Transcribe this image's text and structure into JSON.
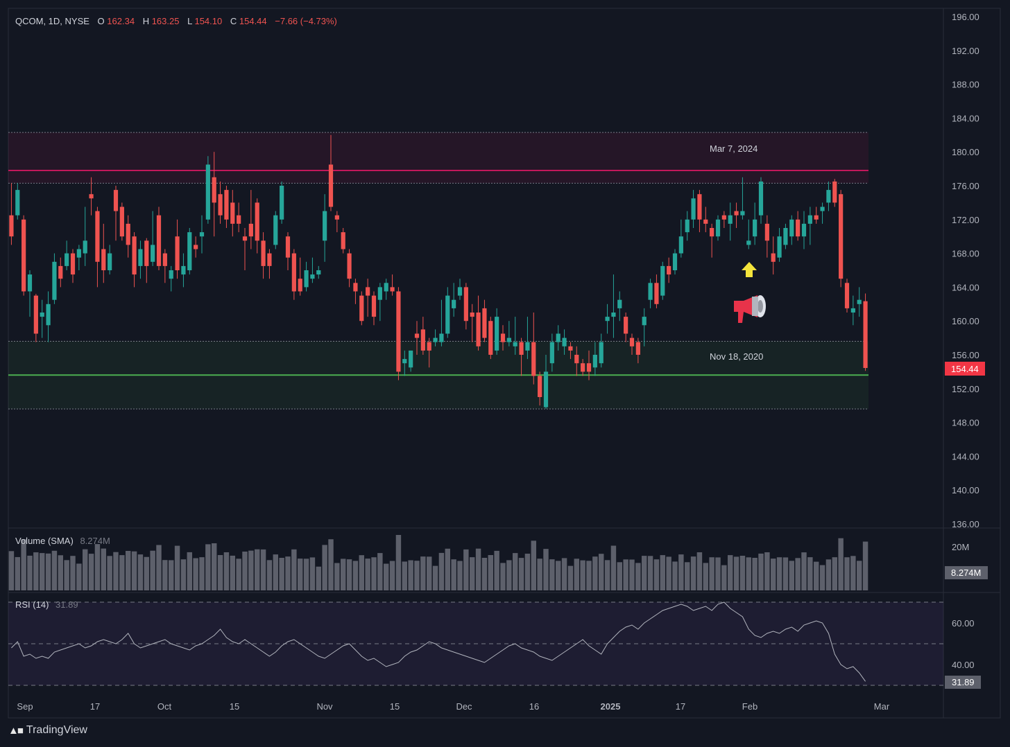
{
  "header": {
    "symbol": "QCOM, 1D, NYSE",
    "open_label": "O",
    "open": "162.34",
    "high_label": "H",
    "high": "163.25",
    "low_label": "L",
    "low": "154.10",
    "close_label": "C",
    "close": "154.44",
    "change": "−7.66 (−4.73%)"
  },
  "brand": {
    "name": "TradingView"
  },
  "zones": {
    "resistance_label": "Mar 7, 2024",
    "support_label": "Nov 18, 2020"
  },
  "volume_panel": {
    "label": "Volume (SMA)",
    "value": "8.274M",
    "axis_label": "20M",
    "badge": "8.274M"
  },
  "rsi_panel": {
    "label": "RSI (14)",
    "value": "31.89",
    "ticks": [
      "60.00",
      "40.00"
    ],
    "badge": "31.89"
  },
  "price_badge": "154.44",
  "colors": {
    "up": "#26a69a",
    "down": "#ef5350",
    "background": "#131722",
    "resistance": "#c2185b",
    "support": "#4caf50",
    "rsi_line": "#b2b5be"
  },
  "icons": [
    "up-arrow-icon",
    "megaphone-icon",
    "tradingview-logo-icon"
  ],
  "chart_data": [
    {
      "type": "candlestick",
      "title": "QCOM, 1D, NYSE",
      "price_axis_ticks": [
        "196.00",
        "192.00",
        "188.00",
        "184.00",
        "180.00",
        "176.00",
        "172.00",
        "168.00",
        "164.00",
        "160.00",
        "156.00",
        "152.00",
        "148.00",
        "144.00",
        "140.00",
        "136.00"
      ],
      "ylim": [
        136,
        196
      ],
      "time_axis_ticks": [
        "Sep",
        "17",
        "Oct",
        "15",
        "Nov",
        "15",
        "Dec",
        "16",
        "2025",
        "17",
        "Feb",
        "Mar"
      ],
      "levels": [
        {
          "label": "Mar 7, 2024",
          "price": 177.8,
          "zone": [
            176.3,
            182.3
          ]
        },
        {
          "label": "Nov 18, 2020",
          "price": 153.6,
          "zone": [
            149.6,
            157.6
          ]
        }
      ],
      "last_price": 154.44,
      "bars": [
        {
          "o": 172.5,
          "h": 176.3,
          "l": 169.0,
          "c": 170.0
        },
        {
          "o": 172.5,
          "h": 176.3,
          "l": 172.0,
          "c": 175.5
        },
        {
          "o": 172.0,
          "h": 172.5,
          "l": 163.0,
          "c": 163.5
        },
        {
          "o": 163.5,
          "h": 166.0,
          "l": 160.5,
          "c": 165.5
        },
        {
          "o": 163.0,
          "h": 163.2,
          "l": 157.5,
          "c": 158.5
        },
        {
          "o": 160.5,
          "h": 162.5,
          "l": 158.0,
          "c": 161.0
        },
        {
          "o": 159.5,
          "h": 163.5,
          "l": 157.5,
          "c": 162.0
        },
        {
          "o": 162.5,
          "h": 168.0,
          "l": 162.0,
          "c": 167.0
        },
        {
          "o": 166.5,
          "h": 167.5,
          "l": 164.0,
          "c": 165.0
        },
        {
          "o": 166.5,
          "h": 169.5,
          "l": 166.0,
          "c": 168.0
        },
        {
          "o": 168.0,
          "h": 168.5,
          "l": 164.5,
          "c": 165.5
        },
        {
          "o": 167.5,
          "h": 169.0,
          "l": 166.0,
          "c": 168.5
        },
        {
          "o": 168.0,
          "h": 173.5,
          "l": 166.5,
          "c": 169.5
        },
        {
          "o": 175.0,
          "h": 177.0,
          "l": 172.5,
          "c": 174.5
        },
        {
          "o": 173.0,
          "h": 173.5,
          "l": 164.0,
          "c": 167.0
        },
        {
          "o": 168.5,
          "h": 171.5,
          "l": 164.5,
          "c": 166.0
        },
        {
          "o": 166.0,
          "h": 169.0,
          "l": 165.5,
          "c": 168.0
        },
        {
          "o": 175.5,
          "h": 176.0,
          "l": 169.5,
          "c": 173.0
        },
        {
          "o": 173.5,
          "h": 174.0,
          "l": 169.5,
          "c": 170.0
        },
        {
          "o": 171.5,
          "h": 172.5,
          "l": 167.5,
          "c": 169.0
        },
        {
          "o": 170.0,
          "h": 170.5,
          "l": 164.0,
          "c": 165.5
        },
        {
          "o": 166.5,
          "h": 169.5,
          "l": 165.0,
          "c": 168.5
        },
        {
          "o": 169.5,
          "h": 169.8,
          "l": 164.5,
          "c": 166.5
        },
        {
          "o": 167.0,
          "h": 173.0,
          "l": 166.5,
          "c": 169.0
        },
        {
          "o": 172.5,
          "h": 173.5,
          "l": 166.0,
          "c": 166.5
        },
        {
          "o": 168.0,
          "h": 168.5,
          "l": 164.5,
          "c": 166.5
        },
        {
          "o": 165.0,
          "h": 166.5,
          "l": 163.5,
          "c": 166.0
        },
        {
          "o": 170.0,
          "h": 172.0,
          "l": 165.0,
          "c": 166.0
        },
        {
          "o": 165.5,
          "h": 168.0,
          "l": 164.0,
          "c": 166.5
        },
        {
          "o": 166.0,
          "h": 171.0,
          "l": 165.5,
          "c": 170.5
        },
        {
          "o": 169.0,
          "h": 170.0,
          "l": 167.5,
          "c": 168.5
        },
        {
          "o": 170.0,
          "h": 172.5,
          "l": 168.0,
          "c": 170.5
        },
        {
          "o": 172.0,
          "h": 179.5,
          "l": 171.5,
          "c": 178.5
        },
        {
          "o": 177.0,
          "h": 180.0,
          "l": 170.0,
          "c": 174.0
        },
        {
          "o": 175.0,
          "h": 176.5,
          "l": 171.5,
          "c": 172.5
        },
        {
          "o": 175.5,
          "h": 176.0,
          "l": 171.0,
          "c": 172.0
        },
        {
          "o": 174.0,
          "h": 175.5,
          "l": 170.0,
          "c": 171.5
        },
        {
          "o": 172.5,
          "h": 174.0,
          "l": 170.5,
          "c": 171.5
        },
        {
          "o": 170.0,
          "h": 171.0,
          "l": 166.0,
          "c": 169.5
        },
        {
          "o": 171.5,
          "h": 175.5,
          "l": 168.5,
          "c": 170.0
        },
        {
          "o": 174.0,
          "h": 174.5,
          "l": 168.0,
          "c": 169.5
        },
        {
          "o": 169.5,
          "h": 170.5,
          "l": 165.0,
          "c": 166.5
        },
        {
          "o": 168.0,
          "h": 168.5,
          "l": 165.0,
          "c": 166.5
        },
        {
          "o": 169.0,
          "h": 173.0,
          "l": 168.5,
          "c": 172.5
        },
        {
          "o": 172.0,
          "h": 176.5,
          "l": 171.5,
          "c": 176.0
        },
        {
          "o": 170.0,
          "h": 170.5,
          "l": 166.0,
          "c": 167.5
        },
        {
          "o": 168.0,
          "h": 168.5,
          "l": 162.5,
          "c": 163.5
        },
        {
          "o": 165.0,
          "h": 167.5,
          "l": 163.0,
          "c": 163.5
        },
        {
          "o": 164.0,
          "h": 167.0,
          "l": 163.5,
          "c": 166.0
        },
        {
          "o": 165.0,
          "h": 167.5,
          "l": 164.5,
          "c": 165.5
        },
        {
          "o": 165.5,
          "h": 166.5,
          "l": 165.0,
          "c": 166.0
        },
        {
          "o": 169.5,
          "h": 175.0,
          "l": 167.0,
          "c": 173.0
        },
        {
          "o": 178.5,
          "h": 182.0,
          "l": 173.0,
          "c": 173.5
        },
        {
          "o": 172.5,
          "h": 173.0,
          "l": 170.5,
          "c": 172.0
        },
        {
          "o": 170.5,
          "h": 171.0,
          "l": 168.0,
          "c": 168.5
        },
        {
          "o": 168.0,
          "h": 168.5,
          "l": 164.0,
          "c": 165.0
        },
        {
          "o": 164.5,
          "h": 165.0,
          "l": 162.0,
          "c": 163.5
        },
        {
          "o": 163.0,
          "h": 163.5,
          "l": 159.5,
          "c": 160.0
        },
        {
          "o": 164.0,
          "h": 165.0,
          "l": 160.5,
          "c": 163.0
        },
        {
          "o": 163.0,
          "h": 163.5,
          "l": 159.5,
          "c": 160.5
        },
        {
          "o": 162.5,
          "h": 164.5,
          "l": 160.0,
          "c": 164.0
        },
        {
          "o": 163.5,
          "h": 165.0,
          "l": 162.5,
          "c": 164.5
        },
        {
          "o": 164.0,
          "h": 165.5,
          "l": 163.0,
          "c": 163.5
        },
        {
          "o": 163.5,
          "h": 164.0,
          "l": 153.0,
          "c": 154.0
        },
        {
          "o": 155.0,
          "h": 156.5,
          "l": 153.5,
          "c": 155.5
        },
        {
          "o": 154.5,
          "h": 156.5,
          "l": 154.0,
          "c": 156.5
        },
        {
          "o": 158.5,
          "h": 160.0,
          "l": 156.0,
          "c": 158.0
        },
        {
          "o": 159.0,
          "h": 160.5,
          "l": 156.0,
          "c": 156.5
        },
        {
          "o": 157.5,
          "h": 158.0,
          "l": 154.5,
          "c": 156.5
        },
        {
          "o": 157.5,
          "h": 159.0,
          "l": 157.0,
          "c": 158.0
        },
        {
          "o": 157.5,
          "h": 162.5,
          "l": 157.0,
          "c": 158.5
        },
        {
          "o": 158.5,
          "h": 164.0,
          "l": 158.0,
          "c": 163.0
        },
        {
          "o": 161.5,
          "h": 164.5,
          "l": 160.5,
          "c": 162.5
        },
        {
          "o": 163.0,
          "h": 165.0,
          "l": 162.5,
          "c": 164.0
        },
        {
          "o": 164.0,
          "h": 164.5,
          "l": 159.0,
          "c": 160.0
        },
        {
          "o": 161.0,
          "h": 162.0,
          "l": 157.5,
          "c": 160.5
        },
        {
          "o": 161.0,
          "h": 163.0,
          "l": 156.5,
          "c": 157.0
        },
        {
          "o": 161.5,
          "h": 162.5,
          "l": 157.5,
          "c": 158.0
        },
        {
          "o": 160.0,
          "h": 160.5,
          "l": 155.5,
          "c": 156.0
        },
        {
          "o": 156.5,
          "h": 161.5,
          "l": 156.0,
          "c": 160.5
        },
        {
          "o": 158.5,
          "h": 159.5,
          "l": 156.5,
          "c": 157.5
        },
        {
          "o": 157.5,
          "h": 160.0,
          "l": 157.0,
          "c": 158.0
        },
        {
          "o": 157.0,
          "h": 160.5,
          "l": 156.0,
          "c": 157.5
        },
        {
          "o": 157.5,
          "h": 158.0,
          "l": 153.5,
          "c": 156.0
        },
        {
          "o": 156.5,
          "h": 160.5,
          "l": 155.5,
          "c": 157.5
        },
        {
          "o": 157.5,
          "h": 161.0,
          "l": 152.5,
          "c": 153.5
        },
        {
          "o": 153.5,
          "h": 154.0,
          "l": 150.0,
          "c": 151.0
        },
        {
          "o": 149.8,
          "h": 156.0,
          "l": 149.6,
          "c": 154.0
        },
        {
          "o": 155.0,
          "h": 158.5,
          "l": 154.0,
          "c": 157.5
        },
        {
          "o": 157.5,
          "h": 159.5,
          "l": 156.5,
          "c": 158.5
        },
        {
          "o": 157.0,
          "h": 159.0,
          "l": 156.0,
          "c": 158.0
        },
        {
          "o": 157.0,
          "h": 157.5,
          "l": 155.5,
          "c": 156.5
        },
        {
          "o": 156.0,
          "h": 157.0,
          "l": 153.5,
          "c": 155.0
        },
        {
          "o": 155.0,
          "h": 155.5,
          "l": 153.5,
          "c": 154.0
        },
        {
          "o": 155.0,
          "h": 156.5,
          "l": 153.0,
          "c": 154.0
        },
        {
          "o": 154.5,
          "h": 157.5,
          "l": 153.5,
          "c": 156.0
        },
        {
          "o": 155.0,
          "h": 158.5,
          "l": 154.5,
          "c": 157.5
        },
        {
          "o": 160.0,
          "h": 162.0,
          "l": 158.5,
          "c": 160.5
        },
        {
          "o": 160.5,
          "h": 165.5,
          "l": 158.0,
          "c": 161.0
        },
        {
          "o": 161.5,
          "h": 163.5,
          "l": 160.0,
          "c": 162.5
        },
        {
          "o": 160.5,
          "h": 161.0,
          "l": 157.5,
          "c": 158.5
        },
        {
          "o": 158.0,
          "h": 158.5,
          "l": 156.0,
          "c": 157.0
        },
        {
          "o": 157.5,
          "h": 158.0,
          "l": 155.0,
          "c": 156.0
        },
        {
          "o": 159.5,
          "h": 161.5,
          "l": 157.0,
          "c": 160.5
        },
        {
          "o": 162.5,
          "h": 165.0,
          "l": 161.5,
          "c": 164.5
        },
        {
          "o": 164.5,
          "h": 165.5,
          "l": 161.5,
          "c": 162.0
        },
        {
          "o": 163.0,
          "h": 167.0,
          "l": 162.5,
          "c": 166.5
        },
        {
          "o": 166.5,
          "h": 167.5,
          "l": 164.5,
          "c": 165.5
        },
        {
          "o": 166.0,
          "h": 168.5,
          "l": 165.5,
          "c": 168.0
        },
        {
          "o": 168.0,
          "h": 172.0,
          "l": 167.5,
          "c": 170.0
        },
        {
          "o": 170.5,
          "h": 173.0,
          "l": 169.5,
          "c": 172.0
        },
        {
          "o": 172.0,
          "h": 175.5,
          "l": 171.0,
          "c": 174.5
        },
        {
          "o": 175.0,
          "h": 175.5,
          "l": 170.5,
          "c": 172.0
        },
        {
          "o": 172.0,
          "h": 173.5,
          "l": 170.5,
          "c": 171.5
        },
        {
          "o": 171.0,
          "h": 171.5,
          "l": 167.5,
          "c": 170.0
        },
        {
          "o": 170.0,
          "h": 172.5,
          "l": 169.5,
          "c": 172.0
        },
        {
          "o": 172.5,
          "h": 173.0,
          "l": 171.0,
          "c": 172.0
        },
        {
          "o": 171.5,
          "h": 174.0,
          "l": 169.5,
          "c": 172.5
        },
        {
          "o": 173.0,
          "h": 174.0,
          "l": 171.0,
          "c": 172.5
        },
        {
          "o": 172.5,
          "h": 177.0,
          "l": 172.0,
          "c": 173.0
        },
        {
          "o": 169.0,
          "h": 172.0,
          "l": 168.5,
          "c": 169.5
        },
        {
          "o": 170.0,
          "h": 174.0,
          "l": 169.0,
          "c": 172.0
        },
        {
          "o": 172.5,
          "h": 177.0,
          "l": 171.5,
          "c": 176.5
        },
        {
          "o": 171.5,
          "h": 172.5,
          "l": 167.5,
          "c": 169.5
        },
        {
          "o": 168.0,
          "h": 170.0,
          "l": 165.5,
          "c": 167.0
        },
        {
          "o": 167.5,
          "h": 171.0,
          "l": 167.0,
          "c": 170.0
        },
        {
          "o": 169.0,
          "h": 171.5,
          "l": 168.5,
          "c": 171.0
        },
        {
          "o": 170.0,
          "h": 172.5,
          "l": 169.0,
          "c": 172.0
        },
        {
          "o": 172.0,
          "h": 173.0,
          "l": 169.5,
          "c": 170.0
        },
        {
          "o": 170.0,
          "h": 173.0,
          "l": 168.5,
          "c": 171.5
        },
        {
          "o": 171.5,
          "h": 173.5,
          "l": 169.0,
          "c": 172.5
        },
        {
          "o": 172.5,
          "h": 173.5,
          "l": 171.5,
          "c": 172.0
        },
        {
          "o": 173.0,
          "h": 174.0,
          "l": 171.5,
          "c": 173.5
        },
        {
          "o": 174.0,
          "h": 176.5,
          "l": 173.0,
          "c": 175.5
        },
        {
          "o": 176.5,
          "h": 176.8,
          "l": 173.5,
          "c": 174.0
        },
        {
          "o": 175.0,
          "h": 175.5,
          "l": 164.0,
          "c": 165.0
        },
        {
          "o": 164.5,
          "h": 165.0,
          "l": 161.0,
          "c": 161.5
        },
        {
          "o": 161.0,
          "h": 163.0,
          "l": 159.5,
          "c": 161.5
        },
        {
          "o": 162.0,
          "h": 164.0,
          "l": 160.5,
          "c": 162.5
        },
        {
          "o": 162.34,
          "h": 163.25,
          "l": 154.1,
          "c": 154.44
        }
      ],
      "volume": {
        "series_name": "Volume (SMA)",
        "sma_value": "8.274M"
      },
      "rsi": {
        "series_name": "RSI (14)",
        "last": 31.89,
        "levels": [
          70,
          50,
          30
        ],
        "values": [
          48,
          51,
          44,
          45,
          43,
          44,
          43,
          46,
          47,
          48,
          49,
          50,
          48,
          49,
          51,
          52,
          51,
          50,
          52,
          55,
          50,
          48,
          49,
          50,
          51,
          52,
          50,
          49,
          48,
          47,
          49,
          50,
          52,
          54,
          57,
          53,
          51,
          50,
          52,
          50,
          48,
          46,
          44,
          46,
          49,
          51,
          52,
          50,
          48,
          46,
          44,
          43,
          45,
          47,
          49,
          50,
          47,
          44,
          42,
          43,
          41,
          39,
          40,
          41,
          44,
          46,
          47,
          49,
          51,
          50,
          48,
          47,
          46,
          45,
          44,
          43,
          42,
          41,
          43,
          45,
          47,
          49,
          50,
          48,
          47,
          46,
          44,
          43,
          42,
          44,
          46,
          48,
          50,
          52,
          49,
          47,
          45,
          50,
          53,
          56,
          58,
          59,
          57,
          60,
          62,
          64,
          66,
          67,
          68,
          69,
          68,
          66,
          67,
          68,
          66,
          69,
          70,
          67,
          65,
          63,
          57,
          54,
          53,
          55,
          56,
          55,
          57,
          58,
          56,
          59,
          60,
          61,
          60,
          55,
          45,
          40,
          38,
          39,
          36,
          31.89
        ]
      }
    }
  ]
}
